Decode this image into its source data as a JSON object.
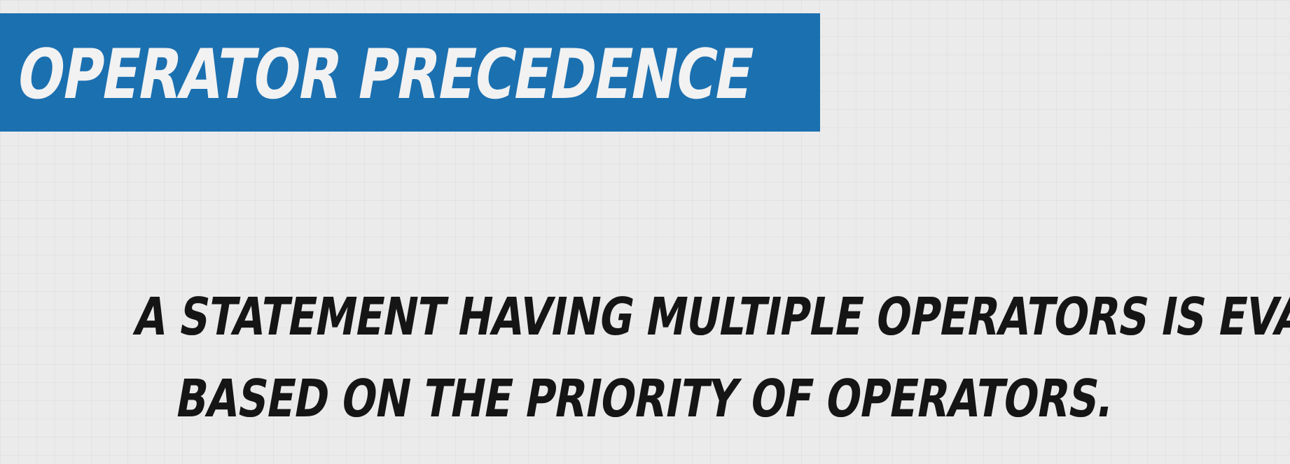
{
  "colors": {
    "banner": "#1b70b0",
    "title_text": "#f2f2f2",
    "body_text": "#151515",
    "background": "#ebebeb"
  },
  "slide": {
    "title": "OPERATOR PRECEDENCE",
    "body_lines": [
      "A STATEMENT HAVING MULTIPLE OPERATORS IS EVALUATED",
      "BASED ON THE PRIORITY OF OPERATORS."
    ]
  }
}
